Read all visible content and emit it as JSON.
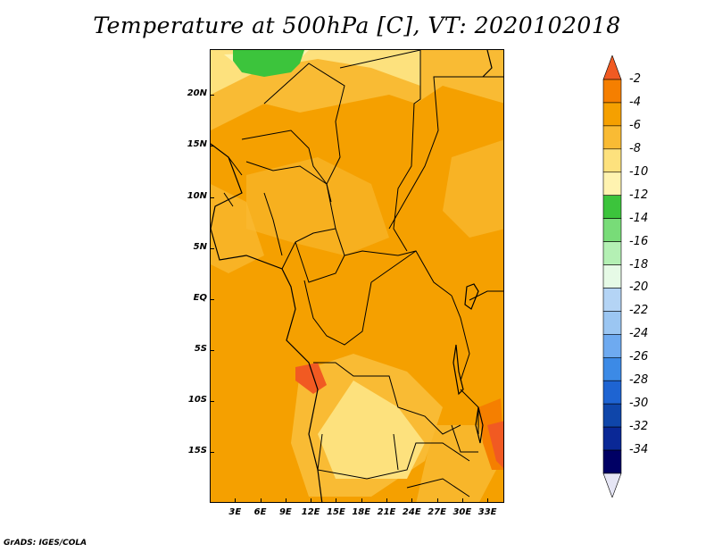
{
  "title": "Temperature at 500hPa [C], VT: 2020102018",
  "credit": "GrADS: IGES/COLA",
  "lat_labels": [
    "20N",
    "15N",
    "10N",
    "5N",
    "EQ",
    "5S",
    "10S",
    "15S"
  ],
  "lat_values": [
    20,
    15,
    10,
    5,
    0,
    -5,
    -10,
    -15
  ],
  "lon_labels": [
    "3E",
    "6E",
    "9E",
    "12E",
    "15E",
    "18E",
    "21E",
    "24E",
    "27E",
    "30E",
    "33E"
  ],
  "lon_values": [
    3,
    6,
    9,
    12,
    15,
    18,
    21,
    24,
    27,
    30,
    33
  ],
  "map_extent": {
    "lon": [
      0,
      35
    ],
    "lat": [
      -20,
      24.5
    ]
  },
  "colorbar": {
    "labels": [
      "-2",
      "-4",
      "-6",
      "-8",
      "-10",
      "-12",
      "-14",
      "-16",
      "-18",
      "-20",
      "-22",
      "-24",
      "-26",
      "-28",
      "-30",
      "-32",
      "-34"
    ],
    "colors": [
      "#f15a22",
      "#f57f00",
      "#f5a000",
      "#f9bb34",
      "#fde17d",
      "#fff3b0",
      "#3cc43c",
      "#78dc78",
      "#b4f0b4",
      "#e6fae6",
      "#b4d4f5",
      "#9bc6f2",
      "#6eaaf0",
      "#3c8ae6",
      "#1e64d2",
      "#0f46aa",
      "#0a2896",
      "#000064",
      "#e6e6f5"
    ]
  }
}
